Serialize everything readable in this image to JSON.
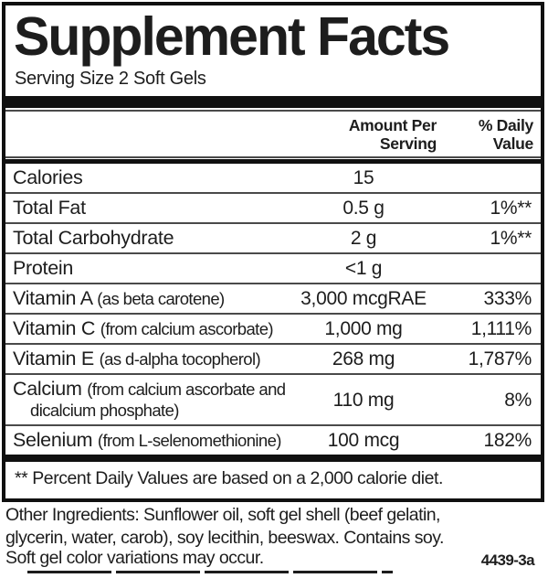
{
  "label": {
    "title": "Supplement Facts",
    "serving_size": "Serving Size 2 Soft Gels",
    "header": {
      "amount_line1": "Amount Per",
      "amount_line2": "Serving",
      "dv_line1": "% Daily",
      "dv_line2": "Value"
    },
    "rows": [
      {
        "name": "Calories",
        "note": "",
        "amount": "15",
        "dv": ""
      },
      {
        "name": "Total Fat",
        "note": "",
        "amount": "0.5 g",
        "dv": "1%**"
      },
      {
        "name": "Total Carbohydrate",
        "note": "",
        "amount": "2 g",
        "dv": "1%**"
      },
      {
        "name": "Protein",
        "note": "",
        "amount": "<1 g",
        "dv": ""
      },
      {
        "name": "Vitamin A",
        "note": "(as beta carotene)",
        "amount": "3,000 mcgRAE",
        "dv": "333%"
      },
      {
        "name": "Vitamin C",
        "note": "(from calcium ascorbate)",
        "amount": "1,000 mg",
        "dv": "1,111%"
      },
      {
        "name": "Vitamin E",
        "note": "(as d-alpha tocopherol)",
        "amount": "268 mg",
        "dv": "1,787%"
      },
      {
        "name": "Calcium",
        "note": "(from calcium ascorbate and dicalcium phosphate)",
        "amount": "110 mg",
        "dv": "8%"
      },
      {
        "name": "Selenium",
        "note": "(from L-selenomethionine)",
        "amount": "100 mcg",
        "dv": "182%"
      }
    ],
    "footnote": "** Percent Daily Values are based on a 2,000 calorie diet.",
    "other_ingredients_lines": [
      "Other Ingredients: Sunflower oil, soft gel shell (beef gelatin,",
      "glycerin, water, carob), soy lecithin, beeswax. Contains soy."
    ],
    "softgel_note": "Soft gel color variations may occur.",
    "code": "4439-3a"
  },
  "colors": {
    "text": "#1d1d1d",
    "bars": "#101010",
    "rules": "#4a4a4a",
    "background": "#ffffff"
  }
}
